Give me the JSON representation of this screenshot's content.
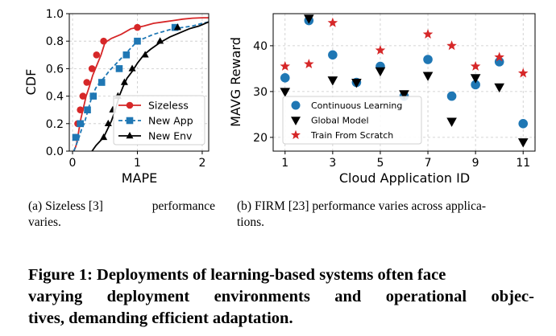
{
  "chart_data": [
    {
      "type": "line",
      "panel": "a",
      "xlabel": "MAPE",
      "ylabel": "CDF",
      "xlim": [
        -0.05,
        2.1
      ],
      "ylim": [
        0.0,
        1.0
      ],
      "xticks": [
        "0",
        "1",
        "2"
      ],
      "yticks": [
        "0.0",
        "0.2",
        "0.4",
        "0.6",
        "0.8",
        "1.0"
      ],
      "grid": true,
      "legend_position": "bottom-right",
      "series": [
        {
          "name": "Sizeless",
          "color": "#d62728",
          "marker": "circle",
          "linestyle": "solid",
          "x": [
            0.02,
            0.04,
            0.06,
            0.08,
            0.1,
            0.13,
            0.17,
            0.21,
            0.26,
            0.31,
            0.37,
            0.44,
            0.5,
            0.6,
            0.75,
            0.9,
            1.0,
            1.1,
            1.25,
            1.4,
            1.55,
            1.7,
            1.85,
            2.0,
            2.1
          ],
          "y": [
            0.0,
            0.02,
            0.05,
            0.1,
            0.16,
            0.24,
            0.32,
            0.4,
            0.47,
            0.55,
            0.62,
            0.7,
            0.79,
            0.82,
            0.85,
            0.89,
            0.9,
            0.91,
            0.93,
            0.94,
            0.95,
            0.96,
            0.967,
            0.97,
            0.97
          ],
          "marker_points": {
            "x": [
              0.05,
              0.08,
              0.12,
              0.16,
              0.22,
              0.3,
              0.37,
              0.48,
              1.0
            ],
            "y": [
              0.1,
              0.2,
              0.3,
              0.4,
              0.5,
              0.6,
              0.7,
              0.8,
              0.9
            ]
          }
        },
        {
          "name": "New App",
          "color": "#1f77b4",
          "marker": "square",
          "linestyle": "dashed",
          "x": [
            0.02,
            0.06,
            0.1,
            0.14,
            0.18,
            0.24,
            0.3,
            0.36,
            0.42,
            0.48,
            0.56,
            0.64,
            0.72,
            0.8,
            0.9,
            1.0,
            1.1,
            1.25,
            1.4,
            1.55,
            1.7,
            1.85,
            2.0,
            2.1
          ],
          "y": [
            0.0,
            0.05,
            0.1,
            0.16,
            0.2,
            0.3,
            0.4,
            0.46,
            0.5,
            0.53,
            0.58,
            0.62,
            0.66,
            0.7,
            0.75,
            0.8,
            0.82,
            0.85,
            0.87,
            0.89,
            0.9,
            0.91,
            0.93,
            0.94
          ],
          "marker_points": {
            "x": [
              0.05,
              0.12,
              0.23,
              0.32,
              0.45,
              0.72,
              0.83,
              1.0,
              1.58
            ],
            "y": [
              0.1,
              0.2,
              0.3,
              0.4,
              0.5,
              0.6,
              0.7,
              0.8,
              0.9
            ]
          }
        },
        {
          "name": "New Env",
          "color": "#000000",
          "marker": "triangle",
          "linestyle": "solid",
          "x": [
            0.3,
            0.36,
            0.42,
            0.48,
            0.54,
            0.6,
            0.66,
            0.72,
            0.78,
            0.84,
            0.92,
            1.0,
            1.1,
            1.2,
            1.35,
            1.5,
            1.65,
            1.8,
            1.95,
            2.1
          ],
          "y": [
            0.0,
            0.04,
            0.07,
            0.1,
            0.16,
            0.22,
            0.3,
            0.4,
            0.47,
            0.53,
            0.58,
            0.64,
            0.7,
            0.74,
            0.79,
            0.83,
            0.86,
            0.89,
            0.91,
            0.94
          ],
          "marker_points": {
            "x": [
              0.48,
              0.55,
              0.62,
              0.7,
              0.8,
              0.92,
              1.12,
              1.35,
              1.62
            ],
            "y": [
              0.1,
              0.2,
              0.3,
              0.4,
              0.5,
              0.6,
              0.7,
              0.8,
              0.9
            ]
          }
        }
      ]
    },
    {
      "type": "scatter",
      "panel": "b",
      "xlabel": "Cloud Application ID",
      "ylabel": "MAVG Reward",
      "xlim": [
        0.5,
        11.5
      ],
      "ylim": [
        17,
        47
      ],
      "xticks": [
        "1",
        "3",
        "5",
        "7",
        "9",
        "11"
      ],
      "yticks": [
        "20",
        "30",
        "40"
      ],
      "grid": true,
      "legend_position": "lower-left",
      "x": [
        1,
        2,
        3,
        4,
        5,
        6,
        7,
        8,
        9,
        10,
        11
      ],
      "series": [
        {
          "name": "Continuous Learning",
          "color": "#1f77b4",
          "marker": "circle",
          "values": [
            33.0,
            45.5,
            38.0,
            32.0,
            35.5,
            29.0,
            37.0,
            29.0,
            31.5,
            36.5,
            23.0
          ]
        },
        {
          "name": "Global Model",
          "color": "#000000",
          "marker": "triangle-down",
          "values": [
            30.0,
            46.0,
            32.5,
            32.0,
            34.5,
            29.5,
            33.5,
            23.5,
            33.0,
            31.0,
            19.0
          ]
        },
        {
          "name": "Train From Scratch",
          "color": "#d62728",
          "marker": "star",
          "values": [
            35.5,
            36.0,
            45.0,
            null,
            39.0,
            null,
            42.5,
            40.0,
            35.5,
            37.5,
            34.0
          ]
        }
      ]
    }
  ],
  "captions": {
    "a_line1_left": "(a)  Sizeless  [3]",
    "a_line1_right": "performance",
    "a_line2": "varies.",
    "b_line1": "(b)  FIRM [23] performance varies across applica-",
    "b_line2": "tions."
  },
  "figure_caption": {
    "line1": "Figure 1: Deployments of learning-based systems often face",
    "line2_words": [
      "varying",
      "deployment",
      "environments",
      "and",
      "operational",
      "objec-"
    ],
    "line3": "tives, demanding efficient adaptation."
  }
}
